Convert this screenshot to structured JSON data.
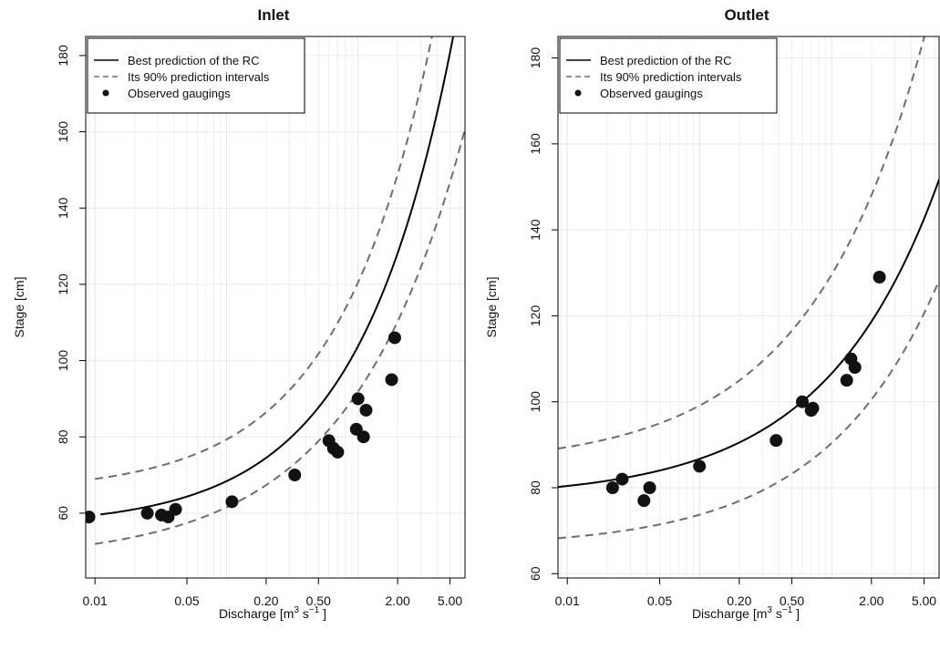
{
  "chart_data": [
    {
      "type": "scatter",
      "title": "Inlet",
      "xlabel_parts": [
        "Discharge [m",
        "3",
        " s",
        "−1",
        " ]"
      ],
      "ylabel": "Stage [cm]",
      "x_scale": "log",
      "xlim": [
        0.0085,
        6.5
      ],
      "ylim": [
        43,
        185
      ],
      "x_ticks": [
        0.01,
        0.05,
        0.2,
        0.5,
        2,
        5
      ],
      "x_tick_labels": [
        "0.01",
        "0.05",
        "0.20",
        "0.50",
        "2.00",
        "5.00"
      ],
      "y_ticks": [
        60,
        80,
        100,
        120,
        140,
        160,
        180
      ],
      "y_tick_labels": [
        "60",
        "80",
        "100",
        "120",
        "140",
        "160",
        "180"
      ],
      "grid": true,
      "legend": {
        "placement": "top-left",
        "entries": [
          "Best prediction of the RC",
          "Its 90% prediction intervals",
          "Observed gaugings"
        ]
      },
      "rc_curve": {
        "h0": 56.5,
        "a": 47.3,
        "b": 0.6,
        "x_start": 0.011
      },
      "prediction_interval": {
        "upper": {
          "h0": 65.5,
          "a": 55,
          "b": 0.6,
          "x_start": 0.01
        },
        "lower": {
          "h0": 47.5,
          "a": 44.4,
          "b": 0.5,
          "x_start": 0.01
        }
      },
      "observed": {
        "x": [
          0.009,
          0.025,
          0.032,
          0.036,
          0.041,
          0.11,
          0.33,
          0.6,
          0.65,
          0.7,
          0.97,
          1.0,
          1.1,
          1.15,
          1.8,
          1.9
        ],
        "y": [
          59,
          60,
          59.5,
          59,
          61,
          63,
          70,
          79,
          77,
          76,
          82,
          90,
          80,
          87,
          95,
          106
        ]
      }
    },
    {
      "type": "scatter",
      "title": "Outlet",
      "xlabel_parts": [
        "Discharge [m",
        "3",
        " s",
        "−1",
        " ]"
      ],
      "ylabel": "Stage [cm]",
      "x_scale": "log",
      "xlim": [
        0.0085,
        6.5
      ],
      "ylim": [
        59,
        185
      ],
      "x_ticks": [
        0.01,
        0.05,
        0.2,
        0.5,
        2,
        5
      ],
      "x_tick_labels": [
        "0.01",
        "0.05",
        "0.20",
        "0.50",
        "2.00",
        "5.00"
      ],
      "y_ticks": [
        60,
        80,
        100,
        120,
        140,
        160,
        180
      ],
      "y_tick_labels": [
        "60",
        "80",
        "100",
        "120",
        "140",
        "160",
        "180"
      ],
      "grid": true,
      "legend": {
        "placement": "top-left",
        "entries": [
          "Best prediction of the RC",
          "Its 90% prediction intervals",
          "Observed gaugings"
        ]
      },
      "rc_curve": {
        "h0": 77.5,
        "a": 29.1,
        "b": 0.5,
        "x_start": 0.0085
      },
      "prediction_interval": {
        "upper": {
          "h0": 85,
          "a": 44.6,
          "b": 0.5,
          "x_start": 0.0085
        },
        "lower": {
          "h0": 66,
          "a": 24.4,
          "b": 0.5,
          "x_start": 0.0085
        }
      },
      "observed": {
        "x": [
          0.022,
          0.026,
          0.038,
          0.042,
          0.1,
          0.38,
          0.6,
          0.7,
          0.72,
          1.3,
          1.4,
          1.5,
          2.3
        ],
        "y": [
          80,
          82,
          77,
          80,
          85,
          91,
          100,
          98,
          98.5,
          105,
          110,
          108,
          129
        ]
      }
    }
  ]
}
